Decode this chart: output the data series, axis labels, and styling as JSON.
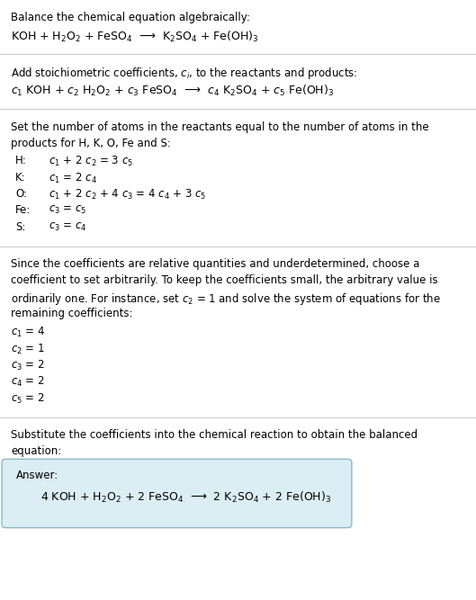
{
  "bg_color": "#ffffff",
  "text_color": "#000000",
  "title1": "Balance the chemical equation algebraically:",
  "eq1": "KOH + H$_2$O$_2$ + FeSO$_4$  ⟶  K$_2$SO$_4$ + Fe(OH)$_3$",
  "section2_title": "Add stoichiometric coefficients, $c_i$, to the reactants and products:",
  "eq2": "$c_1$ KOH + $c_2$ H$_2$O$_2$ + $c_3$ FeSO$_4$  ⟶  $c_4$ K$_2$SO$_4$ + $c_5$ Fe(OH)$_3$",
  "section3_title_line1": "Set the number of atoms in the reactants equal to the number of atoms in the",
  "section3_title_line2": "products for H, K, O, Fe and S:",
  "equations": [
    [
      "H:",
      "$c_1$ + 2 $c_2$ = 3 $c_5$"
    ],
    [
      "K:",
      "$c_1$ = 2 $c_4$"
    ],
    [
      "O:",
      "$c_1$ + 2 $c_2$ + 4 $c_3$ = 4 $c_4$ + 3 $c_5$"
    ],
    [
      "Fe:",
      "$c_3$ = $c_5$"
    ],
    [
      "S:",
      "$c_3$ = $c_4$"
    ]
  ],
  "section4_lines": [
    "Since the coefficients are relative quantities and underdetermined, choose a",
    "coefficient to set arbitrarily. To keep the coefficients small, the arbitrary value is",
    "ordinarily one. For instance, set $c_2$ = 1 and solve the system of equations for the",
    "remaining coefficients:"
  ],
  "coefficients": [
    "$c_1$ = 4",
    "$c_2$ = 1",
    "$c_3$ = 2",
    "$c_4$ = 2",
    "$c_5$ = 2"
  ],
  "section5_line1": "Substitute the coefficients into the chemical reaction to obtain the balanced",
  "section5_line2": "equation:",
  "answer_label": "Answer:",
  "answer_eq": "4 KOH + H$_2$O$_2$ + 2 FeSO$_4$  ⟶  2 K$_2$SO$_4$ + 2 Fe(OH)$_3$",
  "answer_box_color": "#daeef3",
  "answer_box_border": "#8ab8cc",
  "sep_color": "#cccccc"
}
